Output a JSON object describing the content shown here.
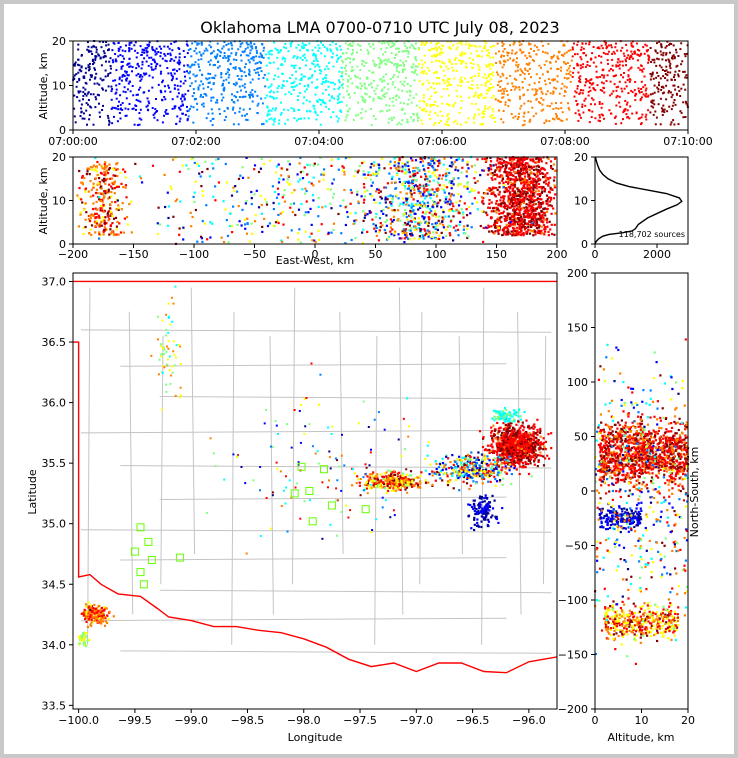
{
  "title": "Oklahoma LMA 0700-0710 UTC July 08, 2023",
  "colors": {
    "county": "#c4c4c4",
    "state": "#ff0000",
    "station": "#66ff00",
    "colormap": [
      "#00008f",
      "#0000ff",
      "#0080ff",
      "#00ffff",
      "#80ff80",
      "#ffff00",
      "#ff8000",
      "#ff0000",
      "#800000"
    ]
  },
  "chart_data": [
    {
      "id": "time-height",
      "type": "scatter",
      "xlabel": "",
      "ylabel": "Altitude, km",
      "ylim": [
        0,
        20
      ],
      "yticks": [
        "0",
        "10",
        "20"
      ],
      "xticks": [
        "07:00:00",
        "07:02:00",
        "07:04:00",
        "07:06:00",
        "07:08:00",
        "07:10:00"
      ],
      "xlim_seconds": [
        0,
        600
      ],
      "series": [
        {
          "altitude_km_range": [
            1,
            20
          ],
          "density": "continuous",
          "color_by": "time"
        }
      ]
    },
    {
      "id": "ew-height",
      "type": "scatter",
      "xlabel": "East-West, km",
      "ylabel": "Altitude, km",
      "xlim": [
        -200,
        200
      ],
      "ylim": [
        0,
        20
      ],
      "xticks": [
        "−200",
        "−150",
        "−100",
        "−50",
        "0",
        "50",
        "100",
        "150",
        "200"
      ],
      "yticks": [
        "0",
        "10",
        "20"
      ],
      "clusters": [
        {
          "x_center": -175,
          "x_spread": 18,
          "z_range": [
            2,
            19
          ],
          "weight": 0.12
        },
        {
          "x_center": 170,
          "x_spread": 28,
          "z_range": [
            2,
            20
          ],
          "weight": 0.45
        },
        {
          "x_center": 90,
          "x_spread": 45,
          "z_range": [
            1,
            20
          ],
          "weight": 0.25
        },
        {
          "x_center": 0,
          "x_spread": 150,
          "z_range": [
            0,
            20
          ],
          "weight": 0.18
        }
      ]
    },
    {
      "id": "altitude-histogram",
      "type": "line",
      "xlim": [
        0,
        3000
      ],
      "ylim": [
        0,
        20
      ],
      "xticks": [
        "0",
        "2000"
      ],
      "yticks": [
        "0",
        "10",
        "20"
      ],
      "annotation": "118,702 sources",
      "x": [
        0,
        40,
        120,
        250,
        450,
        900,
        1200,
        1300,
        1400,
        1700,
        2300,
        2650,
        2800,
        2720,
        2300,
        1700,
        1100,
        700,
        420,
        250,
        150,
        90,
        50,
        20,
        0
      ],
      "y": [
        0,
        0.6,
        1.2,
        1.8,
        2.2,
        2.6,
        3.0,
        3.5,
        4.5,
        6.0,
        8.0,
        9.0,
        9.8,
        10.6,
        11.6,
        12.4,
        13.2,
        14.0,
        15.0,
        16.0,
        17.0,
        18.0,
        19.0,
        19.8,
        20
      ]
    },
    {
      "id": "plan-view",
      "type": "scatter",
      "xlabel": "Longitude",
      "ylabel": "Latitude",
      "xlim": [
        -100.05,
        -95.75
      ],
      "ylim": [
        33.47,
        37.07
      ],
      "xticks": [
        "−100.0",
        "−99.5",
        "−99.0",
        "−98.5",
        "−98.0",
        "−97.5",
        "−97.0",
        "−96.5",
        "−96.0"
      ],
      "yticks": [
        "33.5",
        "34.0",
        "34.5",
        "35.0",
        "35.5",
        "36.0",
        "36.5",
        "37.0"
      ],
      "stations": [
        [
          -99.45,
          34.97
        ],
        [
          -99.38,
          34.85
        ],
        [
          -99.5,
          34.77
        ],
        [
          -99.35,
          34.7
        ],
        [
          -99.1,
          34.72
        ],
        [
          -99.45,
          34.6
        ],
        [
          -99.42,
          34.5
        ],
        [
          -98.02,
          35.47
        ],
        [
          -98.08,
          35.25
        ],
        [
          -97.95,
          35.27
        ],
        [
          -97.92,
          35.02
        ],
        [
          -97.82,
          35.45
        ],
        [
          -97.75,
          35.15
        ],
        [
          -97.45,
          35.12
        ]
      ]
    },
    {
      "id": "ns-height",
      "type": "scatter",
      "xlabel": "Altitude, km",
      "ylabel": "North-South, km",
      "xlim": [
        0,
        20
      ],
      "ylim": [
        -200,
        200
      ],
      "xticks": [
        "0",
        "10",
        "20"
      ],
      "yticks": [
        "200",
        "150",
        "100",
        "50",
        "0",
        "−50",
        "−100",
        "−150",
        "−200"
      ],
      "clusters": [
        {
          "y_center": 35,
          "y_spread": 30,
          "z_range": [
            1,
            20
          ],
          "weight": 0.55
        },
        {
          "y_center": -120,
          "y_spread": 15,
          "z_range": [
            2,
            18
          ],
          "weight": 0.18
        },
        {
          "y_center": -25,
          "y_spread": 10,
          "z_range": [
            1,
            10
          ],
          "weight": 0.08
        },
        {
          "y_center": 0,
          "y_spread": 120,
          "z_range": [
            0,
            20
          ],
          "weight": 0.19
        }
      ]
    }
  ]
}
